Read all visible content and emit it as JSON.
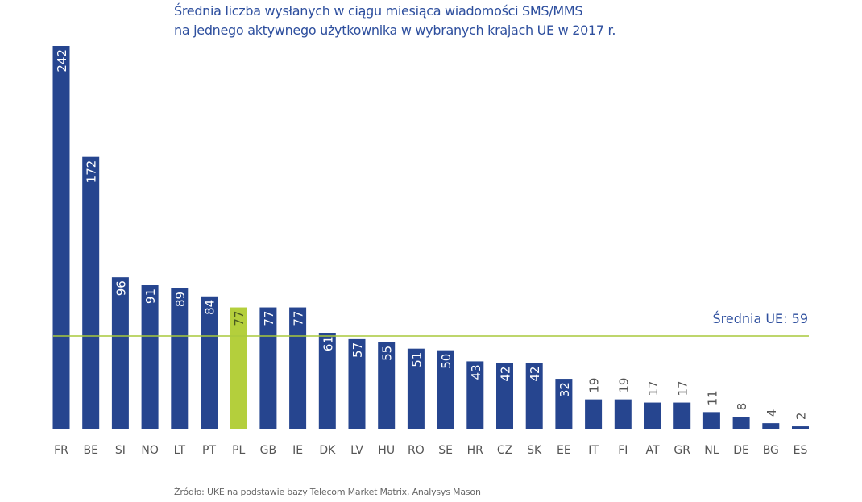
{
  "chart_data": {
    "type": "bar",
    "title": "Średnia liczba wysłanych w ciągu miesiąca wiadomości SMS/MMS",
    "subtitle": "na jednego aktywnego użytkownika w wybranych krajach UE w 2017 r.",
    "categories": [
      "FR",
      "BE",
      "SI",
      "NO",
      "LT",
      "PT",
      "PL",
      "GB",
      "IE",
      "DK",
      "LV",
      "HU",
      "RO",
      "SE",
      "HR",
      "CZ",
      "SK",
      "EE",
      "IT",
      "FI",
      "AT",
      "GR",
      "NL",
      "DE",
      "BG",
      "ES"
    ],
    "values": [
      242,
      172,
      96,
      91,
      89,
      84,
      77,
      77,
      77,
      61,
      57,
      55,
      51,
      50,
      43,
      42,
      42,
      32,
      19,
      19,
      17,
      17,
      11,
      8,
      4,
      2
    ],
    "highlight": "PL",
    "reference_line": {
      "label": "Średnia UE: 59",
      "value": 59
    },
    "xlabel": "",
    "ylabel": "",
    "ylim": [
      0,
      242
    ],
    "grid": false,
    "source": "Źródło: UKE na podstawie bazy Telecom Market Matrix, Analysys Mason",
    "colors": {
      "bar": "#26458f",
      "highlight": "#b4cf3c",
      "reference_line": "#a9c93c",
      "title": "#2e4f9e",
      "label_dark": "#555555"
    }
  }
}
